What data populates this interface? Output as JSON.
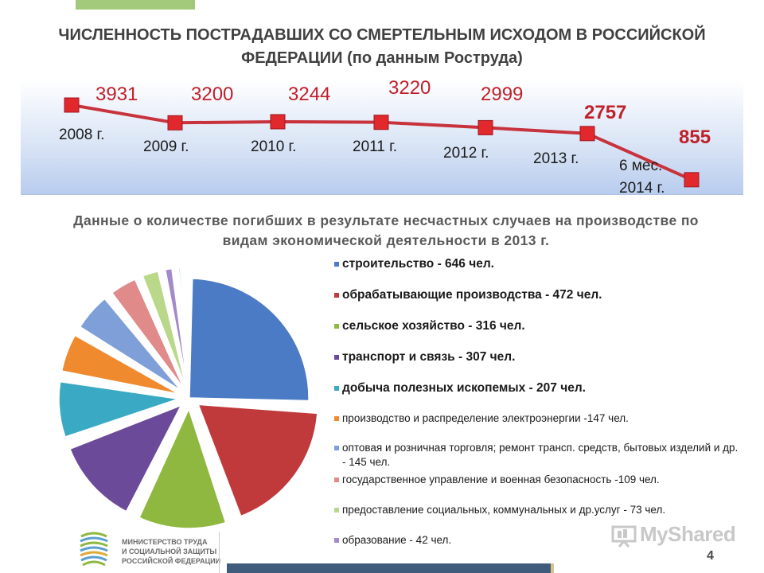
{
  "title": "ЧИСЛЕННОСТЬ ПОСТРАДАВШИХ СО СМЕРТЕЛЬНЫМ ИСХОДОМ В РОССИЙСКОЙ ФЕДЕРАЦИИ (по данным Роструда)",
  "subtitle": "Данные о количестве погибших в результате несчастных случаев на производстве по видам экономической деятельности в 2013 г.",
  "chart_data": [
    {
      "type": "line",
      "categories": [
        "2008 г.",
        "2009 г.",
        "2010 г.",
        "2011 г.",
        "2012 г.",
        "2013 г.",
        "6 мес. 2014 г."
      ],
      "values": [
        3931,
        3200,
        3244,
        3220,
        2999,
        2757,
        855
      ],
      "value_labels": [
        "3931",
        "3200",
        "3244",
        "3220",
        "2999",
        "2757",
        "855"
      ],
      "bold_value_indices": [
        5,
        6
      ],
      "line_color": "#c8323c",
      "marker_color": "#e0282d",
      "grid": false,
      "legend": "none"
    },
    {
      "type": "pie",
      "labels": [
        "строительство - 646 чел.",
        "обрабатывающие производства - 472 чел.",
        "сельское хозяйство - 316 чел.",
        "транспорт и связь - 307 чел.",
        "добыча полезных ископемых - 207 чел.",
        "производство и распределение электроэнергии -147 чел.",
        "оптовая и розничная торговля; ремонт трансп. средств, бытовых изделий и др. - 145 чел.",
        "государственное управление и военная безопасность -109 чел.",
        "предоставление социальных, коммунальных и др.услуг - 73 чел.",
        "образование - 42 чел.",
        "",
        ""
      ],
      "values": [
        646,
        472,
        316,
        307,
        207,
        147,
        145,
        109,
        73,
        42,
        25,
        18
      ],
      "colors": [
        "#4a7bc4",
        "#c0393b",
        "#8fb840",
        "#6b4a9a",
        "#3aaac4",
        "#f08a2e",
        "#7f9fd8",
        "#e08a8a",
        "#b9d88a",
        "#a48ac8",
        "#8acfe0",
        "#f8c890"
      ],
      "bold_legend_count": 5,
      "legend": "right"
    }
  ],
  "logo": {
    "lines": [
      "МИНИСТЕРСТВО ТРУДА",
      "И СОЦИАЛЬНОЙ ЗАЩИТЫ",
      "РОССИЙСКОЙ ФЕДЕРАЦИИ"
    ]
  },
  "watermark": "MyShared",
  "page_number": "4"
}
